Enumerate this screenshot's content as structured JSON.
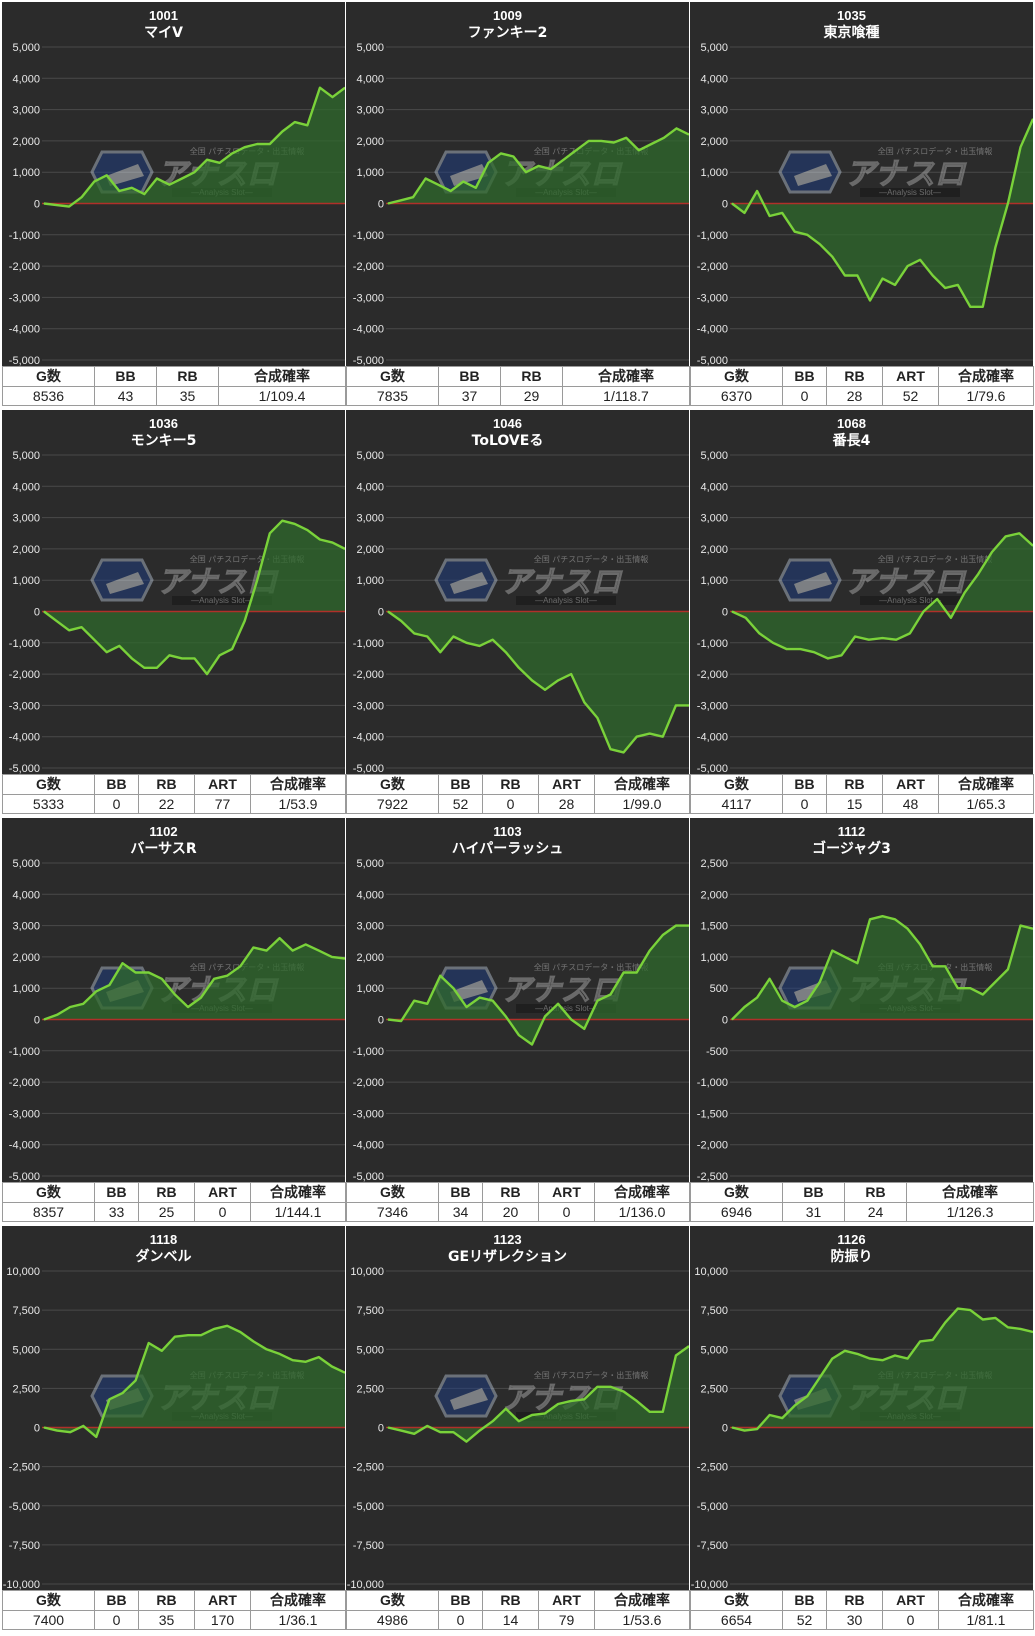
{
  "colors": {
    "background": "#2b2b2b",
    "grid": "#4a4a4a",
    "zero_line": "#b0302a",
    "line": "#7ad23a",
    "fill": "#2f6a2c",
    "tick_text": "#e8e8e8"
  },
  "watermark": {
    "text": "アナスロ",
    "sub": "—Analysis Slot—",
    "top": "全国 パチスロデータ・出玉情報"
  },
  "panels": [
    {
      "number": "1001",
      "name": "マイV",
      "stats": {
        "headers": [
          "G数",
          "BB",
          "RB",
          "合成確率"
        ],
        "values": [
          "8536",
          "43",
          "35",
          "1/109.4"
        ]
      },
      "chart_data": {
        "type": "area",
        "ylim": [
          -5000,
          5000
        ],
        "ticks": [
          5000,
          4000,
          3000,
          2000,
          1000,
          0,
          -1000,
          -2000,
          -3000,
          -4000,
          -5000
        ],
        "y": [
          0,
          -50,
          -100,
          200,
          700,
          900,
          400,
          500,
          300,
          800,
          600,
          800,
          1000,
          1400,
          1300,
          1600,
          1800,
          1900,
          1900,
          2300,
          2600,
          2500,
          3700,
          3400,
          3700
        ]
      }
    },
    {
      "number": "1009",
      "name": "ファンキー2",
      "stats": {
        "headers": [
          "G数",
          "BB",
          "RB",
          "合成確率"
        ],
        "values": [
          "7835",
          "37",
          "29",
          "1/118.7"
        ]
      },
      "chart_data": {
        "type": "area",
        "ylim": [
          -5000,
          5000
        ],
        "ticks": [
          5000,
          4000,
          3000,
          2000,
          1000,
          0,
          -1000,
          -2000,
          -3000,
          -4000,
          -5000
        ],
        "y": [
          0,
          100,
          200,
          800,
          600,
          400,
          700,
          500,
          1300,
          1600,
          1500,
          1000,
          1200,
          1100,
          1400,
          1700,
          2000,
          2000,
          1950,
          2100,
          1700,
          1900,
          2100,
          2400,
          2200
        ]
      }
    },
    {
      "number": "1035",
      "name": "東京喰種",
      "stats": {
        "headers": [
          "G数",
          "BB",
          "RB",
          "ART",
          "合成確率"
        ],
        "values": [
          "6370",
          "0",
          "28",
          "52",
          "1/79.6"
        ]
      },
      "chart_data": {
        "type": "area",
        "ylim": [
          -5000,
          5000
        ],
        "ticks": [
          5000,
          4000,
          3000,
          2000,
          1000,
          0,
          -1000,
          -2000,
          -3000,
          -4000,
          -5000
        ],
        "y": [
          0,
          -300,
          400,
          -400,
          -300,
          -900,
          -1000,
          -1300,
          -1700,
          -2300,
          -2300,
          -3100,
          -2400,
          -2600,
          -2000,
          -1800,
          -2300,
          -2700,
          -2600,
          -3300,
          -3300,
          -1400,
          0,
          1800,
          2700
        ]
      }
    },
    {
      "number": "1036",
      "name": "モンキー5",
      "stats": {
        "headers": [
          "G数",
          "BB",
          "RB",
          "ART",
          "合成確率"
        ],
        "values": [
          "5333",
          "0",
          "22",
          "77",
          "1/53.9"
        ]
      },
      "chart_data": {
        "type": "area",
        "ylim": [
          -5000,
          5000
        ],
        "ticks": [
          5000,
          4000,
          3000,
          2000,
          1000,
          0,
          -1000,
          -2000,
          -3000,
          -4000,
          -5000
        ],
        "y": [
          0,
          -300,
          -600,
          -500,
          -900,
          -1300,
          -1100,
          -1500,
          -1800,
          -1800,
          -1400,
          -1500,
          -1500,
          -2000,
          -1400,
          -1200,
          -300,
          1000,
          2500,
          2900,
          2800,
          2600,
          2300,
          2200,
          2000
        ]
      }
    },
    {
      "number": "1046",
      "name": "ToLOVEる",
      "stats": {
        "headers": [
          "G数",
          "BB",
          "RB",
          "ART",
          "合成確率"
        ],
        "values": [
          "7922",
          "52",
          "0",
          "28",
          "1/99.0"
        ]
      },
      "chart_data": {
        "type": "area",
        "ylim": [
          -5000,
          5000
        ],
        "ticks": [
          5000,
          4000,
          3000,
          2000,
          1000,
          0,
          -1000,
          -2000,
          -3000,
          -4000,
          -5000
        ],
        "y": [
          0,
          -300,
          -700,
          -800,
          -1300,
          -800,
          -1000,
          -1100,
          -900,
          -1300,
          -1800,
          -2200,
          -2500,
          -2200,
          -2000,
          -2900,
          -3400,
          -4400,
          -4500,
          -4000,
          -3900,
          -4000,
          -3000,
          -3000
        ]
      }
    },
    {
      "number": "1068",
      "name": "番長4",
      "stats": {
        "headers": [
          "G数",
          "BB",
          "RB",
          "ART",
          "合成確率"
        ],
        "values": [
          "4117",
          "0",
          "15",
          "48",
          "1/65.3"
        ]
      },
      "chart_data": {
        "type": "area",
        "ylim": [
          -5000,
          5000
        ],
        "ticks": [
          5000,
          4000,
          3000,
          2000,
          1000,
          0,
          -1000,
          -2000,
          -3000,
          -4000,
          -5000
        ],
        "y": [
          0,
          -200,
          -700,
          -1000,
          -1200,
          -1200,
          -1300,
          -1500,
          -1400,
          -800,
          -900,
          -850,
          -900,
          -700,
          0,
          400,
          -200,
          600,
          1200,
          1900,
          2400,
          2500,
          2100
        ]
      }
    },
    {
      "number": "1102",
      "name": "バーサスR",
      "stats": {
        "headers": [
          "G数",
          "BB",
          "RB",
          "ART",
          "合成確率"
        ],
        "values": [
          "8357",
          "33",
          "25",
          "0",
          "1/144.1"
        ]
      },
      "chart_data": {
        "type": "area",
        "ylim": [
          -5000,
          5000
        ],
        "ticks": [
          5000,
          4000,
          3000,
          2000,
          1000,
          0,
          -1000,
          -2000,
          -3000,
          -4000,
          -5000
        ],
        "y": [
          0,
          150,
          400,
          500,
          900,
          1100,
          1800,
          1500,
          1500,
          1300,
          800,
          400,
          700,
          1300,
          1400,
          1700,
          2300,
          2200,
          2600,
          2200,
          2400,
          2200,
          2000,
          1950
        ]
      }
    },
    {
      "number": "1103",
      "name": "ハイパーラッシュ",
      "stats": {
        "headers": [
          "G数",
          "BB",
          "RB",
          "ART",
          "合成確率"
        ],
        "values": [
          "7346",
          "34",
          "20",
          "0",
          "1/136.0"
        ]
      },
      "chart_data": {
        "type": "area",
        "ylim": [
          -5000,
          5000
        ],
        "ticks": [
          5000,
          4000,
          3000,
          2000,
          1000,
          0,
          -1000,
          -2000,
          -3000,
          -4000,
          -5000
        ],
        "y": [
          0,
          -50,
          600,
          500,
          1400,
          1000,
          400,
          700,
          600,
          100,
          -500,
          -800,
          100,
          500,
          0,
          -300,
          600,
          800,
          1500,
          1500,
          2200,
          2700,
          3000,
          3000
        ]
      }
    },
    {
      "number": "1112",
      "name": "ゴージャグ3",
      "stats": {
        "headers": [
          "G数",
          "BB",
          "RB",
          "合成確率"
        ],
        "values": [
          "6946",
          "31",
          "24",
          "1/126.3"
        ]
      },
      "chart_data": {
        "type": "area",
        "ylim": [
          -2500,
          2500
        ],
        "ticks": [
          2500,
          2000,
          1500,
          1000,
          500,
          0,
          -500,
          -1000,
          -1500,
          -2000,
          -2500
        ],
        "y": [
          0,
          200,
          350,
          650,
          300,
          200,
          300,
          600,
          1100,
          1000,
          900,
          1600,
          1650,
          1600,
          1450,
          1200,
          850,
          850,
          500,
          500,
          400,
          600,
          800,
          1500,
          1450
        ]
      }
    },
    {
      "number": "1118",
      "name": "ダンベル",
      "stats": {
        "headers": [
          "G数",
          "BB",
          "RB",
          "ART",
          "合成確率"
        ],
        "values": [
          "7400",
          "0",
          "35",
          "170",
          "1/36.1"
        ]
      },
      "chart_data": {
        "type": "area",
        "ylim": [
          -10000,
          10000
        ],
        "ticks": [
          10000,
          7500,
          5000,
          2500,
          0,
          -2500,
          -5000,
          -7500,
          -10000
        ],
        "y": [
          0,
          -200,
          -300,
          100,
          -600,
          1800,
          2200,
          3000,
          5400,
          4900,
          5800,
          5900,
          5900,
          6300,
          6500,
          6100,
          5500,
          5000,
          4700,
          4300,
          4200,
          4500,
          3900,
          3500
        ]
      }
    },
    {
      "number": "1123",
      "name": "GEリザレクション",
      "stats": {
        "headers": [
          "G数",
          "BB",
          "RB",
          "ART",
          "合成確率"
        ],
        "values": [
          "4986",
          "0",
          "14",
          "79",
          "1/53.6"
        ]
      },
      "chart_data": {
        "type": "area",
        "ylim": [
          -10000,
          10000
        ],
        "ticks": [
          10000,
          7500,
          5000,
          2500,
          0,
          -2500,
          -5000,
          -7500,
          -10000
        ],
        "y": [
          0,
          -200,
          -400,
          100,
          -300,
          -300,
          -900,
          -200,
          400,
          1200,
          400,
          800,
          900,
          1500,
          1700,
          1800,
          2600,
          2600,
          2300,
          1700,
          1000,
          1000,
          4600,
          5200
        ]
      }
    },
    {
      "number": "1126",
      "name": "防振り",
      "stats": {
        "headers": [
          "G数",
          "BB",
          "RB",
          "ART",
          "合成確率"
        ],
        "values": [
          "6654",
          "52",
          "30",
          "0",
          "1/81.1"
        ]
      },
      "chart_data": {
        "type": "area",
        "ylim": [
          -10000,
          10000
        ],
        "ticks": [
          10000,
          7500,
          5000,
          2500,
          0,
          -2500,
          -5000,
          -7500,
          -10000
        ],
        "y": [
          0,
          -200,
          -100,
          800,
          600,
          1400,
          2000,
          3200,
          4400,
          4900,
          4700,
          4400,
          4300,
          4600,
          4400,
          5500,
          5600,
          6700,
          7600,
          7500,
          6900,
          7000,
          6400,
          6300,
          6100
        ]
      }
    }
  ]
}
